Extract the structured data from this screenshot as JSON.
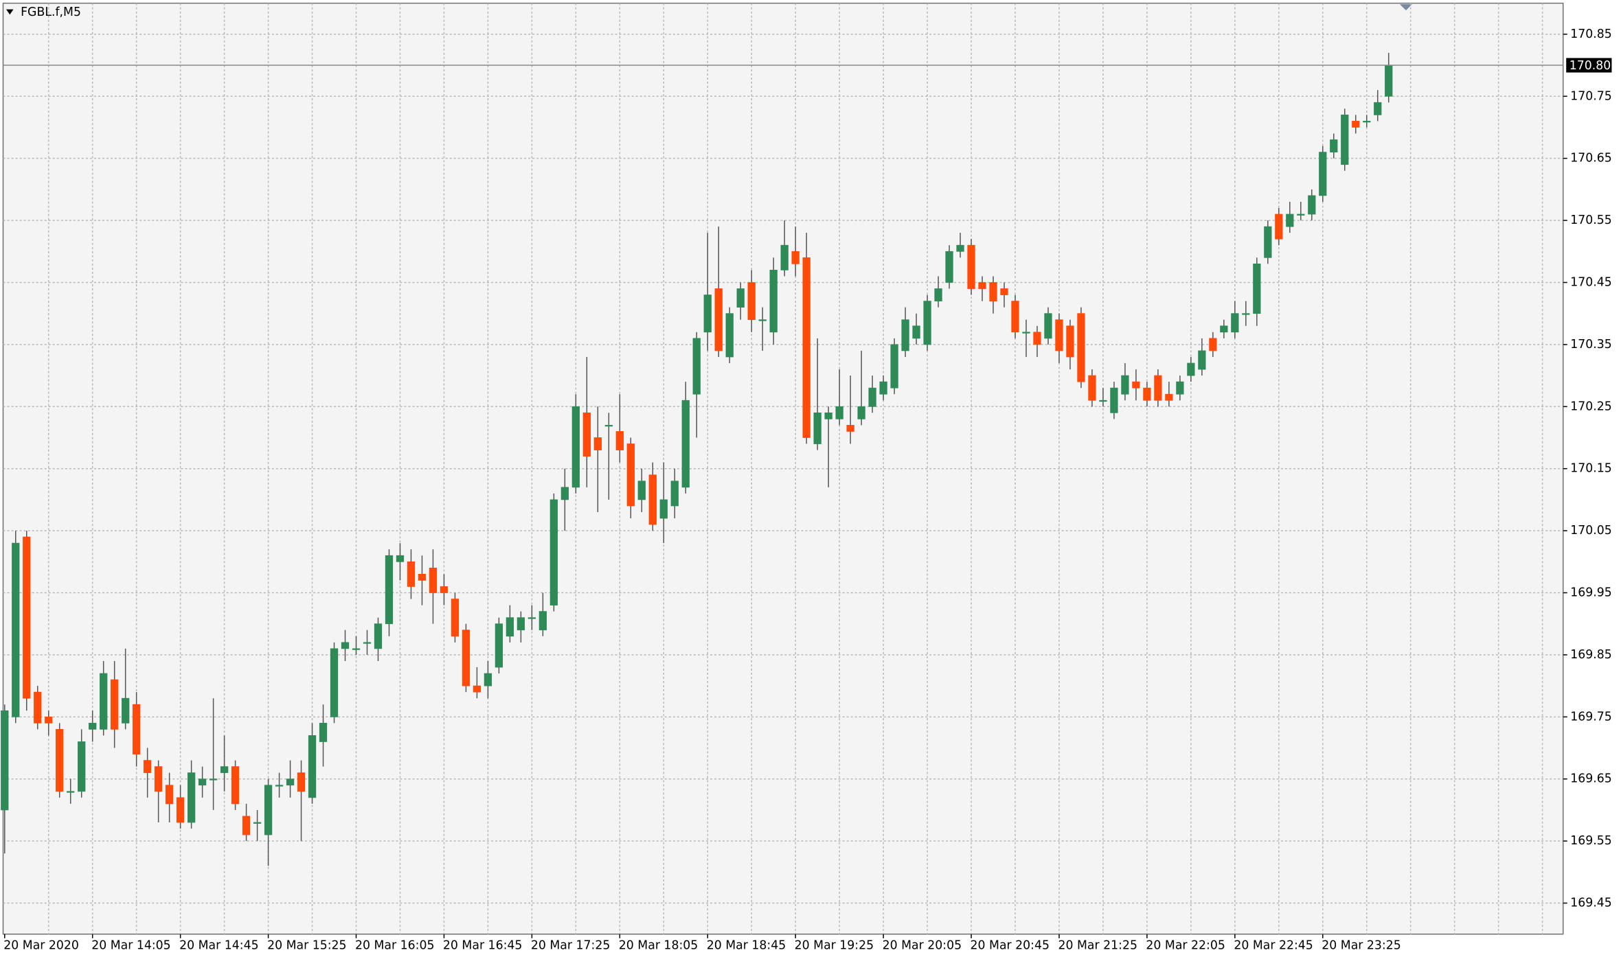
{
  "chart_data": {
    "type": "candlestick",
    "title": "FGBL.f,M5",
    "categories": [
      "20 Mar 2020",
      null,
      null,
      null,
      null,
      null,
      null,
      null,
      "20 Mar 14:05",
      null,
      null,
      null,
      null,
      null,
      null,
      null,
      "20 Mar 14:45",
      null,
      null,
      null,
      null,
      null,
      null,
      null,
      "20 Mar 15:25",
      null,
      null,
      null,
      null,
      null,
      null,
      null,
      "20 Mar 16:05",
      null,
      null,
      null,
      null,
      null,
      null,
      null,
      "20 Mar 16:45",
      null,
      null,
      null,
      null,
      null,
      null,
      null,
      "20 Mar 17:25",
      null,
      null,
      null,
      null,
      null,
      null,
      null,
      "20 Mar 18:05",
      null,
      null,
      null,
      null,
      null,
      null,
      null,
      "20 Mar 18:45",
      null,
      null,
      null,
      null,
      null,
      null,
      null,
      "20 Mar 19:25",
      null,
      null,
      null,
      null,
      null,
      null,
      null,
      "20 Mar 20:05",
      null,
      null,
      null,
      null,
      null,
      null,
      null,
      "20 Mar 20:45",
      null,
      null,
      null,
      null,
      null,
      null,
      null,
      "20 Mar 21:25",
      null,
      null,
      null,
      null,
      null,
      null,
      null,
      "20 Mar 22:05",
      null,
      null,
      null,
      null,
      null,
      null,
      null,
      "20 Mar 22:45",
      null,
      null,
      null,
      null,
      null,
      null,
      null,
      "20 Mar 23:25",
      null,
      null,
      null,
      null,
      null,
      null
    ],
    "open": [
      169.6,
      169.75,
      170.04,
      169.79,
      169.75,
      169.73,
      169.63,
      169.63,
      169.73,
      169.73,
      169.81,
      169.74,
      169.77,
      169.68,
      169.67,
      169.64,
      169.62,
      169.58,
      169.64,
      169.65,
      169.66,
      169.67,
      169.59,
      169.58,
      169.56,
      169.64,
      169.64,
      169.66,
      169.62,
      169.71,
      169.75,
      169.86,
      169.86,
      169.87,
      169.86,
      169.9,
      170.0,
      170.0,
      169.98,
      169.99,
      169.96,
      169.94,
      169.89,
      169.8,
      169.8,
      169.83,
      169.88,
      169.89,
      169.91,
      169.89,
      169.93,
      170.1,
      170.12,
      170.24,
      170.2,
      170.22,
      170.21,
      170.19,
      170.1,
      170.14,
      170.07,
      170.09,
      170.12,
      170.27,
      170.37,
      170.44,
      170.33,
      170.41,
      170.45,
      170.39,
      170.37,
      170.47,
      170.5,
      170.49,
      170.19,
      170.23,
      170.23,
      170.22,
      170.23,
      170.25,
      170.27,
      170.28,
      170.34,
      170.36,
      170.35,
      170.42,
      170.45,
      170.5,
      170.51,
      170.45,
      170.45,
      170.44,
      170.42,
      170.37,
      170.37,
      170.36,
      170.39,
      170.38,
      170.4,
      170.3,
      170.26,
      170.24,
      170.27,
      170.29,
      170.28,
      170.3,
      170.27,
      170.27,
      170.3,
      170.31,
      170.36,
      170.37,
      170.37,
      170.4,
      170.4,
      170.49,
      170.56,
      170.54,
      170.56,
      170.56,
      170.59,
      170.66,
      170.64,
      170.71,
      170.71,
      170.72,
      170.75
    ],
    "high": [
      169.77,
      170.05,
      170.05,
      169.8,
      169.76,
      169.74,
      169.65,
      169.73,
      169.76,
      169.84,
      169.84,
      169.86,
      169.79,
      169.7,
      169.68,
      169.66,
      169.64,
      169.68,
      169.67,
      169.78,
      169.72,
      169.68,
      169.61,
      169.6,
      169.65,
      169.66,
      169.68,
      169.68,
      169.74,
      169.77,
      169.87,
      169.89,
      169.88,
      169.89,
      169.91,
      170.02,
      170.03,
      170.02,
      170.01,
      170.02,
      169.98,
      169.95,
      169.9,
      169.83,
      169.84,
      169.91,
      169.93,
      169.92,
      169.93,
      169.95,
      170.11,
      170.15,
      170.27,
      170.33,
      170.25,
      170.24,
      170.27,
      170.2,
      170.15,
      170.16,
      170.16,
      170.15,
      170.29,
      170.37,
      170.53,
      170.54,
      170.41,
      170.45,
      170.47,
      170.41,
      170.49,
      170.55,
      170.54,
      170.53,
      170.36,
      170.25,
      170.31,
      170.3,
      170.34,
      170.3,
      170.3,
      170.36,
      170.41,
      170.4,
      170.43,
      170.46,
      170.51,
      170.53,
      170.52,
      170.46,
      170.46,
      170.45,
      170.43,
      170.39,
      170.38,
      170.41,
      170.4,
      170.39,
      170.41,
      170.31,
      170.28,
      170.29,
      170.32,
      170.31,
      170.29,
      170.31,
      170.29,
      170.3,
      170.33,
      170.36,
      170.37,
      170.39,
      170.42,
      170.42,
      170.49,
      170.55,
      170.57,
      170.58,
      170.58,
      170.6,
      170.67,
      170.69,
      170.73,
      170.72,
      170.72,
      170.76,
      170.82
    ],
    "low": [
      169.53,
      169.74,
      169.76,
      169.73,
      169.72,
      169.62,
      169.61,
      169.62,
      169.71,
      169.72,
      169.7,
      169.73,
      169.67,
      169.62,
      169.58,
      169.58,
      169.57,
      169.57,
      169.62,
      169.6,
      169.63,
      169.6,
      169.55,
      169.55,
      169.51,
      169.62,
      169.62,
      169.55,
      169.61,
      169.67,
      169.74,
      169.84,
      169.85,
      169.85,
      169.84,
      169.88,
      169.97,
      169.94,
      169.93,
      169.9,
      169.93,
      169.87,
      169.79,
      169.78,
      169.78,
      169.82,
      169.87,
      169.87,
      169.89,
      169.88,
      169.92,
      170.05,
      170.11,
      170.12,
      170.08,
      170.1,
      170.16,
      170.07,
      170.08,
      170.05,
      170.03,
      170.07,
      170.11,
      170.2,
      170.34,
      170.33,
      170.32,
      170.39,
      170.37,
      170.34,
      170.35,
      170.46,
      170.46,
      170.19,
      170.18,
      170.12,
      170.22,
      170.19,
      170.22,
      170.24,
      170.26,
      170.27,
      170.33,
      170.35,
      170.34,
      170.41,
      170.44,
      170.49,
      170.43,
      170.42,
      170.4,
      170.41,
      170.36,
      170.33,
      170.33,
      170.35,
      170.32,
      170.31,
      170.28,
      170.25,
      170.25,
      170.23,
      170.26,
      170.26,
      170.25,
      170.25,
      170.25,
      170.26,
      170.29,
      170.3,
      170.33,
      170.36,
      170.36,
      170.38,
      170.38,
      170.48,
      170.51,
      170.53,
      170.55,
      170.55,
      170.58,
      170.65,
      170.63,
      170.69,
      170.7,
      170.71,
      170.74
    ],
    "close": [
      169.76,
      170.03,
      169.78,
      169.74,
      169.74,
      169.63,
      169.63,
      169.71,
      169.74,
      169.82,
      169.73,
      169.78,
      169.69,
      169.66,
      169.63,
      169.61,
      169.58,
      169.66,
      169.65,
      169.65,
      169.67,
      169.61,
      169.56,
      169.58,
      169.64,
      169.64,
      169.65,
      169.63,
      169.72,
      169.74,
      169.86,
      169.87,
      169.86,
      169.87,
      169.9,
      170.01,
      170.01,
      169.96,
      169.97,
      169.95,
      169.95,
      169.88,
      169.8,
      169.79,
      169.82,
      169.9,
      169.91,
      169.91,
      169.91,
      169.92,
      170.1,
      170.12,
      170.25,
      170.17,
      170.18,
      170.22,
      170.18,
      170.09,
      170.13,
      170.06,
      170.1,
      170.13,
      170.26,
      170.36,
      170.43,
      170.34,
      170.4,
      170.44,
      170.39,
      170.39,
      170.47,
      170.51,
      170.48,
      170.2,
      170.24,
      170.24,
      170.25,
      170.21,
      170.25,
      170.28,
      170.29,
      170.35,
      170.39,
      170.38,
      170.42,
      170.44,
      170.5,
      170.51,
      170.44,
      170.44,
      170.42,
      170.43,
      170.37,
      170.37,
      170.35,
      170.4,
      170.34,
      170.33,
      170.29,
      170.26,
      170.26,
      170.28,
      170.3,
      170.28,
      170.26,
      170.26,
      170.26,
      170.29,
      170.32,
      170.34,
      170.34,
      170.38,
      170.4,
      170.4,
      170.48,
      170.54,
      170.52,
      170.56,
      170.56,
      170.59,
      170.66,
      170.68,
      170.72,
      170.7,
      170.71,
      170.74,
      170.8
    ],
    "up_color": "#2e8b57",
    "down_color": "#ff4a0a",
    "ylim": [
      169.4,
      170.9
    ],
    "yticks": [
      169.45,
      169.55,
      169.65,
      169.75,
      169.85,
      169.95,
      170.05,
      170.15,
      170.25,
      170.35,
      170.45,
      170.55,
      170.65,
      170.75,
      170.85
    ],
    "current_price": {
      "value": 170.8,
      "label": "170.80"
    },
    "grid": true
  }
}
